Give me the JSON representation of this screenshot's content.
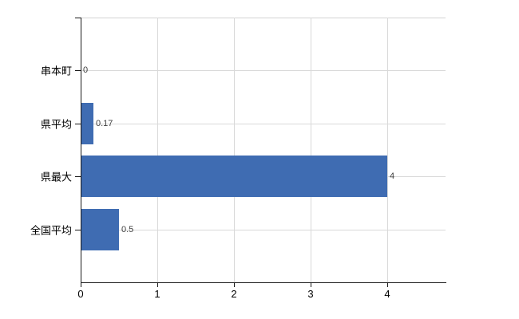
{
  "chart_data": {
    "type": "bar",
    "orientation": "horizontal",
    "title": "",
    "legend": "none",
    "grid": true,
    "categories": [
      "串本町",
      "県平均",
      "県最大",
      "全国平均"
    ],
    "values": [
      0,
      0.17,
      4,
      0.5
    ],
    "value_labels": [
      "0",
      "0.17",
      "4",
      "0.5"
    ],
    "x_tick_labels": [
      "0",
      "1",
      "2",
      "3",
      "4"
    ],
    "x_tick_values": [
      0,
      1,
      2,
      3,
      4
    ],
    "xlim": [
      0,
      4.76
    ],
    "colors": {
      "bar": "#3f6cb2",
      "grid": "#d9d9d9",
      "top_border": "#d4d4d4",
      "axis": "#1a1a1a",
      "value_label": "#404040",
      "tick_label": "#000000"
    }
  }
}
